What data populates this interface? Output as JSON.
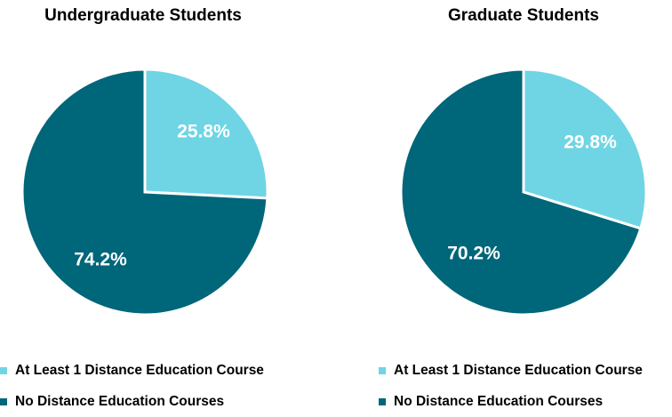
{
  "colors": {
    "distance": "#6fd5e4",
    "none": "#00667a",
    "label": "#ffffff"
  },
  "chart_data": [
    {
      "type": "pie",
      "title": "Undergraduate Students",
      "slices": [
        {
          "label": "At Least 1 Distance Education Course",
          "value": 25.8,
          "display": "25.8%"
        },
        {
          "label": "No Distance Education Courses",
          "value": 74.2,
          "display": "74.2%"
        }
      ],
      "legend": "bottom"
    },
    {
      "type": "pie",
      "title": "Graduate Students",
      "slices": [
        {
          "label": "At Least 1 Distance Education Course",
          "value": 29.8,
          "display": "29.8%"
        },
        {
          "label": "No Distance Education Courses",
          "value": 70.2,
          "display": "70.2%"
        }
      ],
      "legend": "bottom"
    }
  ]
}
